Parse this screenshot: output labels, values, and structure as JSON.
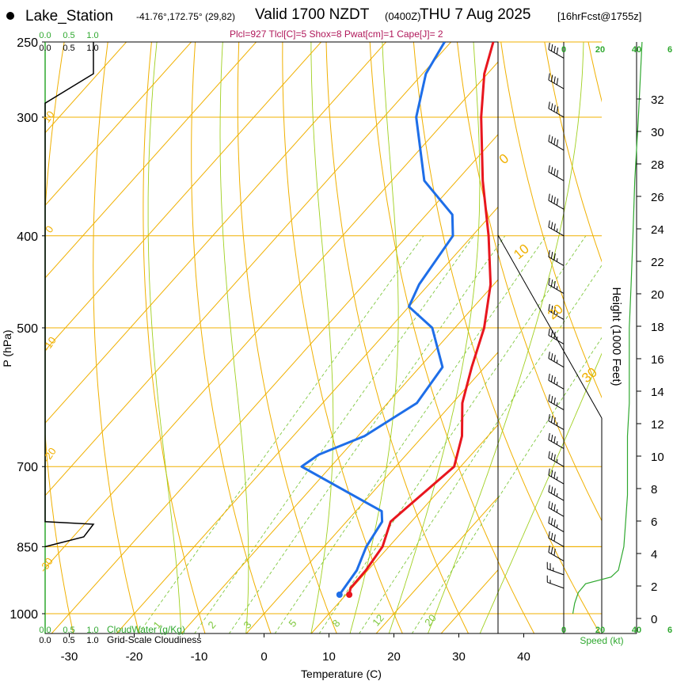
{
  "header": {
    "station": "Lake_Station",
    "coords": "-41.76°,172.75° (29,82)",
    "valid": "Valid 1700 NZDT",
    "zulu": "(0400Z)",
    "date": "THU 7 Aug 2025",
    "forecast": "[16hrFcst@1755z]",
    "params": "Plcl=927 Tlcl[C]=5 Shox=8 Pwat[cm]=1 Cape[J]= 2"
  },
  "colors": {
    "isotherm": "#f0b000",
    "dry_adiabat": "#f0b000",
    "moist_adiabat": "#a0d020",
    "mixing_ratio": "#80c840",
    "temperature": "#e8161e",
    "dewpoint": "#1e6ee8",
    "cloud_axis": "#2fa82f",
    "params": "#b0185a"
  },
  "chart_data": {
    "type": "skew-t",
    "x_axis": {
      "label": "Temperature (C)",
      "ticks": [
        -30,
        -20,
        -10,
        0,
        10,
        20,
        30,
        40
      ],
      "range": [
        -35,
        45
      ]
    },
    "y_axis": {
      "label": "P (hPa)",
      "ticks": [
        250,
        300,
        400,
        500,
        700,
        850,
        1000
      ],
      "range": [
        250,
        1000
      ]
    },
    "height_axis": {
      "label": "Height (1000 Feet)",
      "ticks": [
        0,
        2,
        4,
        6,
        8,
        10,
        12,
        14,
        16,
        18,
        20,
        22,
        24,
        26,
        28,
        30,
        32
      ]
    },
    "temperature_profile": [
      {
        "p": 955,
        "t": 10.5
      },
      {
        "p": 940,
        "t": 9.8
      },
      {
        "p": 900,
        "t": 9.7
      },
      {
        "p": 850,
        "t": 9.0
      },
      {
        "p": 800,
        "t": 6.8
      },
      {
        "p": 780,
        "t": 7.2
      },
      {
        "p": 700,
        "t": 9.0
      },
      {
        "p": 650,
        "t": 6.0
      },
      {
        "p": 600,
        "t": 1.5
      },
      {
        "p": 550,
        "t": -2.0
      },
      {
        "p": 500,
        "t": -5.5
      },
      {
        "p": 450,
        "t": -10.5
      },
      {
        "p": 400,
        "t": -17.5
      },
      {
        "p": 350,
        "t": -26.0
      },
      {
        "p": 300,
        "t": -35.0
      },
      {
        "p": 270,
        "t": -40.5
      },
      {
        "p": 250,
        "t": -43.5
      }
    ],
    "dewpoint_profile": [
      {
        "p": 955,
        "t": 9.0
      },
      {
        "p": 900,
        "t": 8.3
      },
      {
        "p": 850,
        "t": 6.5
      },
      {
        "p": 800,
        "t": 5.5
      },
      {
        "p": 780,
        "t": 4.0
      },
      {
        "p": 740,
        "t": -5.0
      },
      {
        "p": 700,
        "t": -14.5
      },
      {
        "p": 680,
        "t": -13.5
      },
      {
        "p": 650,
        "t": -9.0
      },
      {
        "p": 600,
        "t": -5.5
      },
      {
        "p": 550,
        "t": -6.5
      },
      {
        "p": 500,
        "t": -13.5
      },
      {
        "p": 475,
        "t": -20.0
      },
      {
        "p": 450,
        "t": -21.5
      },
      {
        "p": 400,
        "t": -23.0
      },
      {
        "p": 380,
        "t": -26.0
      },
      {
        "p": 350,
        "t": -35.0
      },
      {
        "p": 300,
        "t": -45.0
      },
      {
        "p": 270,
        "t": -49.5
      },
      {
        "p": 250,
        "t": -51.0
      }
    ],
    "dry_adiabat_labels": [
      "10",
      "0",
      "-10",
      "-20",
      "-30",
      "0",
      "10",
      "20",
      "30"
    ],
    "mixing_ratio_labels": [
      "1",
      "2",
      "3",
      "5",
      "8",
      "12",
      "20"
    ],
    "wind_speed_axis": {
      "label": "Speed (kt)",
      "ticks": [
        0,
        20,
        40
      ],
      "profile": [
        {
          "p": 1000,
          "kt": 5
        },
        {
          "p": 975,
          "kt": 6
        },
        {
          "p": 950,
          "kt": 8
        },
        {
          "p": 930,
          "kt": 12
        },
        {
          "p": 915,
          "kt": 26
        },
        {
          "p": 900,
          "kt": 30
        },
        {
          "p": 850,
          "kt": 33
        },
        {
          "p": 800,
          "kt": 34
        },
        {
          "p": 750,
          "kt": 35
        },
        {
          "p": 700,
          "kt": 35
        },
        {
          "p": 650,
          "kt": 35
        },
        {
          "p": 600,
          "kt": 36
        },
        {
          "p": 550,
          "kt": 36
        },
        {
          "p": 500,
          "kt": 36
        },
        {
          "p": 450,
          "kt": 37
        },
        {
          "p": 400,
          "kt": 38
        },
        {
          "p": 350,
          "kt": 39
        },
        {
          "p": 300,
          "kt": 41
        },
        {
          "p": 250,
          "kt": 43
        }
      ]
    },
    "top_scale": {
      "cloud_water": [
        "0.0",
        "0.5",
        "1.0"
      ],
      "cloudiness": [
        "0.0",
        "0.5",
        "1.0"
      ],
      "speed": [
        "0",
        "20",
        "40",
        "6"
      ]
    },
    "bottom_legend": {
      "cloud_water_label": "CloudWater (g/Kg)",
      "cloud_water_ticks": [
        "0.0",
        "0.5",
        "1.0"
      ],
      "cloudiness_label": "Grid-Scale Cloudiness",
      "cloudiness_ticks": [
        "0.0",
        "0.5",
        "1.0"
      ],
      "speed_ticks": [
        "0",
        "20",
        "40",
        "6"
      ]
    },
    "cloudiness_profile": [
      {
        "p": 250,
        "v": 1.0
      },
      {
        "p": 270,
        "v": 1.0
      },
      {
        "p": 290,
        "v": 0.0
      },
      {
        "p": 800,
        "v": 0.0
      },
      {
        "p": 805,
        "v": 1.0
      },
      {
        "p": 830,
        "v": 0.8
      },
      {
        "p": 850,
        "v": 0.0
      }
    ],
    "wind_barbs": [
      {
        "p": 260,
        "dir": 300,
        "kt": 40
      },
      {
        "p": 280,
        "dir": 300,
        "kt": 40
      },
      {
        "p": 300,
        "dir": 300,
        "kt": 40
      },
      {
        "p": 325,
        "dir": 300,
        "kt": 40
      },
      {
        "p": 350,
        "dir": 300,
        "kt": 40
      },
      {
        "p": 375,
        "dir": 300,
        "kt": 40
      },
      {
        "p": 400,
        "dir": 300,
        "kt": 35
      },
      {
        "p": 430,
        "dir": 300,
        "kt": 35
      },
      {
        "p": 460,
        "dir": 300,
        "kt": 35
      },
      {
        "p": 490,
        "dir": 300,
        "kt": 35
      },
      {
        "p": 520,
        "dir": 300,
        "kt": 35
      },
      {
        "p": 550,
        "dir": 300,
        "kt": 35
      },
      {
        "p": 580,
        "dir": 300,
        "kt": 35
      },
      {
        "p": 610,
        "dir": 300,
        "kt": 35
      },
      {
        "p": 640,
        "dir": 300,
        "kt": 35
      },
      {
        "p": 670,
        "dir": 300,
        "kt": 35
      },
      {
        "p": 700,
        "dir": 300,
        "kt": 35
      },
      {
        "p": 730,
        "dir": 300,
        "kt": 35
      },
      {
        "p": 760,
        "dir": 300,
        "kt": 35
      },
      {
        "p": 790,
        "dir": 300,
        "kt": 35
      },
      {
        "p": 820,
        "dir": 300,
        "kt": 35
      },
      {
        "p": 850,
        "dir": 300,
        "kt": 30
      },
      {
        "p": 880,
        "dir": 300,
        "kt": 30
      },
      {
        "p": 910,
        "dir": 290,
        "kt": 25
      },
      {
        "p": 940,
        "dir": 290,
        "kt": 15
      }
    ]
  }
}
